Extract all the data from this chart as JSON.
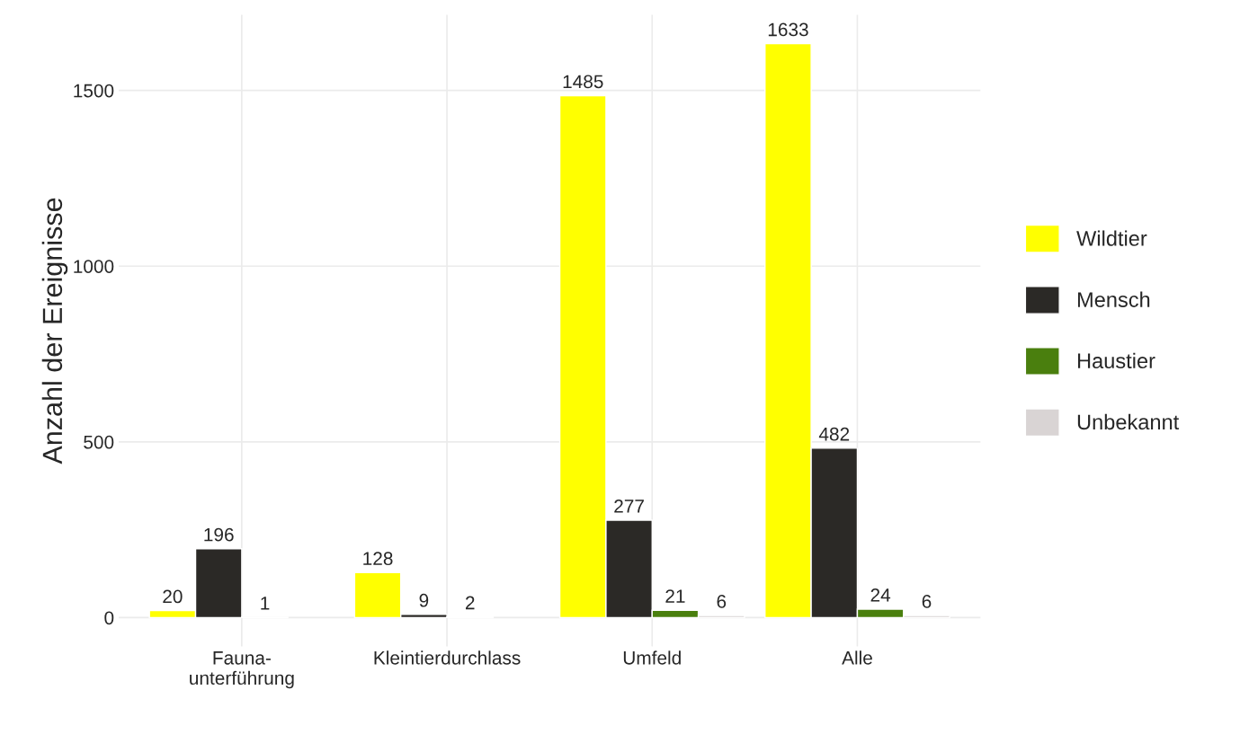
{
  "chart_data": {
    "type": "bar",
    "ylabel": "Anzahl der Ereignisse",
    "categories": [
      "Fauna-\nunterführung",
      "Kleintierdurchlass",
      "Umfeld",
      "Alle"
    ],
    "series": [
      {
        "name": "Wildtier",
        "color": "#ffff00",
        "values": [
          20,
          128,
          1485,
          1633
        ]
      },
      {
        "name": "Mensch",
        "color": "#2b2926",
        "values": [
          196,
          9,
          277,
          482
        ]
      },
      {
        "name": "Haustier",
        "color": "#4a7f0e",
        "values": [
          1,
          2,
          21,
          24
        ]
      },
      {
        "name": "Unbekannt",
        "color": "#d9d4d4",
        "values": [
          null,
          null,
          6,
          6
        ]
      }
    ],
    "ylim": [
      -82,
      1715
    ],
    "yticks": [
      0,
      500,
      1000,
      1500
    ],
    "grid": true,
    "legend": "right",
    "data_labels": true
  }
}
